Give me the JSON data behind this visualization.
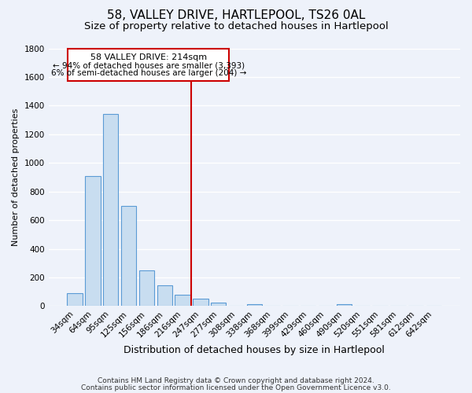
{
  "title": "58, VALLEY DRIVE, HARTLEPOOL, TS26 0AL",
  "subtitle": "Size of property relative to detached houses in Hartlepool",
  "xlabel": "Distribution of detached houses by size in Hartlepool",
  "ylabel": "Number of detached properties",
  "bar_labels": [
    "34sqm",
    "64sqm",
    "95sqm",
    "125sqm",
    "156sqm",
    "186sqm",
    "216sqm",
    "247sqm",
    "277sqm",
    "308sqm",
    "338sqm",
    "368sqm",
    "399sqm",
    "429sqm",
    "460sqm",
    "490sqm",
    "520sqm",
    "551sqm",
    "581sqm",
    "612sqm",
    "642sqm"
  ],
  "bar_values": [
    90,
    910,
    1340,
    700,
    250,
    145,
    80,
    52,
    25,
    0,
    15,
    0,
    0,
    0,
    0,
    12,
    0,
    0,
    0,
    0,
    0
  ],
  "bar_color": "#c8ddf0",
  "bar_edge_color": "#5b9bd5",
  "vline_index": 6,
  "vline_color": "#cc0000",
  "ylim": [
    0,
    1800
  ],
  "yticks": [
    0,
    200,
    400,
    600,
    800,
    1000,
    1200,
    1400,
    1600,
    1800
  ],
  "annotation_title": "58 VALLEY DRIVE: 214sqm",
  "annotation_line1": "← 94% of detached houses are smaller (3,393)",
  "annotation_line2": "6% of semi-detached houses are larger (204) →",
  "annotation_box_edge": "#cc0000",
  "footer1": "Contains HM Land Registry data © Crown copyright and database right 2024.",
  "footer2": "Contains public sector information licensed under the Open Government Licence v3.0.",
  "background_color": "#eef2fa",
  "grid_color": "#ffffff",
  "title_fontsize": 11,
  "subtitle_fontsize": 9.5,
  "xlabel_fontsize": 9,
  "ylabel_fontsize": 8,
  "tick_fontsize": 7.5,
  "footer_fontsize": 6.5
}
